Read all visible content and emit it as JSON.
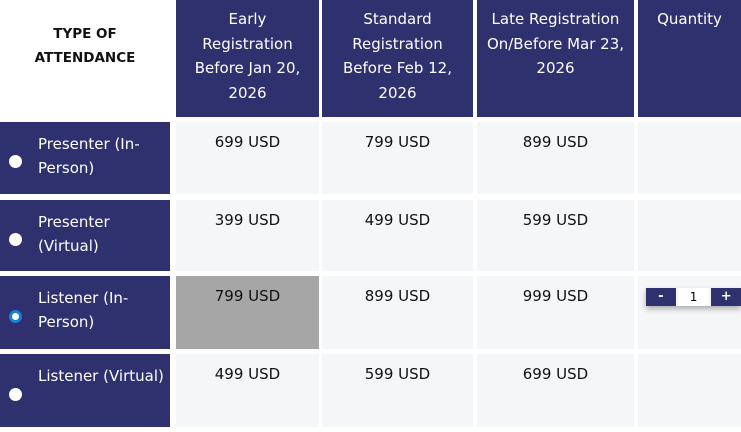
{
  "headers": {
    "type": "TYPE OF ATTENDANCE",
    "early": "Early Registration Before Jan 20, 2026",
    "standard": "Standard Registration Before Feb 12, 2026",
    "late": "Late Registration On/Before Mar 23, 2026",
    "quantity": "Quantity"
  },
  "rows": [
    {
      "label": "Presenter (In-Person)",
      "early": "699 USD",
      "standard": "799 USD",
      "late": "899 USD",
      "selected": false
    },
    {
      "label": "Presenter (Virtual)",
      "early": "399 USD",
      "standard": "499 USD",
      "late": "599 USD",
      "selected": false
    },
    {
      "label": "Listener (In-Person)",
      "early": "799 USD",
      "standard": "899 USD",
      "late": "999 USD",
      "selected": true
    },
    {
      "label": "Listener (Virtual)",
      "early": "499 USD",
      "standard": "599 USD",
      "late": "699 USD",
      "selected": false
    }
  ],
  "quantity": {
    "minus": "-",
    "value": "1",
    "plus": "+"
  },
  "colors": {
    "header": "#2f316f",
    "selected_cell": "#a6a6a6",
    "radio_selected": "#1a7fd6"
  }
}
